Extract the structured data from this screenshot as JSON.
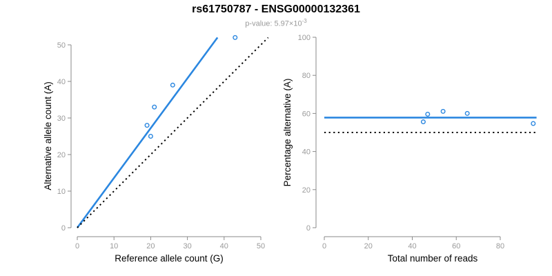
{
  "header": {
    "title": "rs61750787 - ENSG00000132361",
    "pvalue_base": "p-value: 5.97×10",
    "pvalue_exponent": "-3"
  },
  "colors": {
    "accent_blue": "#2b87e0",
    "line_black": "#000000",
    "axis_gray": "#8a8a8a",
    "tick_label_gray": "#9a9a9a",
    "subtitle_gray": "#9a9a9a"
  },
  "chart_data": [
    {
      "type": "scatter",
      "title": "rs61750787 - ENSG00000132361",
      "subtitle": "p-value: 5.97×10^-3",
      "xlabel": "Reference allele count (G)",
      "ylabel": "Alternative allele count (A)",
      "xlim": [
        0,
        52.5
      ],
      "ylim": [
        0,
        52.5
      ],
      "xticks": [
        0,
        10,
        20,
        30,
        40,
        50
      ],
      "yticks": [
        0,
        10,
        20,
        30,
        40,
        50
      ],
      "grid": false,
      "points": [
        [
          20,
          25
        ],
        [
          19,
          28
        ],
        [
          21,
          33
        ],
        [
          26,
          39
        ],
        [
          43,
          52
        ]
      ],
      "lines": [
        {
          "name": "regression-line",
          "x1": 0,
          "y1": 0,
          "x2": 38.2,
          "y2": 52,
          "style": "solid",
          "color": "blue"
        },
        {
          "name": "identity-line",
          "x1": 0,
          "y1": 0,
          "x2": 52,
          "y2": 52,
          "style": "dotted",
          "color": "black"
        }
      ]
    },
    {
      "type": "scatter",
      "xlabel": "Total number of reads",
      "ylabel": "Percentage alternative (A)",
      "xlim": [
        0,
        99
      ],
      "ylim": [
        0,
        100
      ],
      "xticks": [
        0,
        20,
        40,
        60,
        80
      ],
      "yticks": [
        0,
        20,
        40,
        60,
        80,
        100
      ],
      "grid": false,
      "points": [
        [
          45,
          55.6
        ],
        [
          47,
          59.6
        ],
        [
          54,
          61.1
        ],
        [
          65,
          60
        ],
        [
          95,
          54.7
        ]
      ],
      "lines": [
        {
          "name": "mean-percentage-line",
          "x1": 0,
          "y1": 57.8,
          "x2": 96.5,
          "y2": 57.8,
          "style": "solid",
          "color": "blue"
        },
        {
          "name": "fifty-percent-line",
          "x1": 0,
          "y1": 50,
          "x2": 96.5,
          "y2": 50,
          "style": "dotted",
          "color": "black"
        }
      ]
    }
  ]
}
